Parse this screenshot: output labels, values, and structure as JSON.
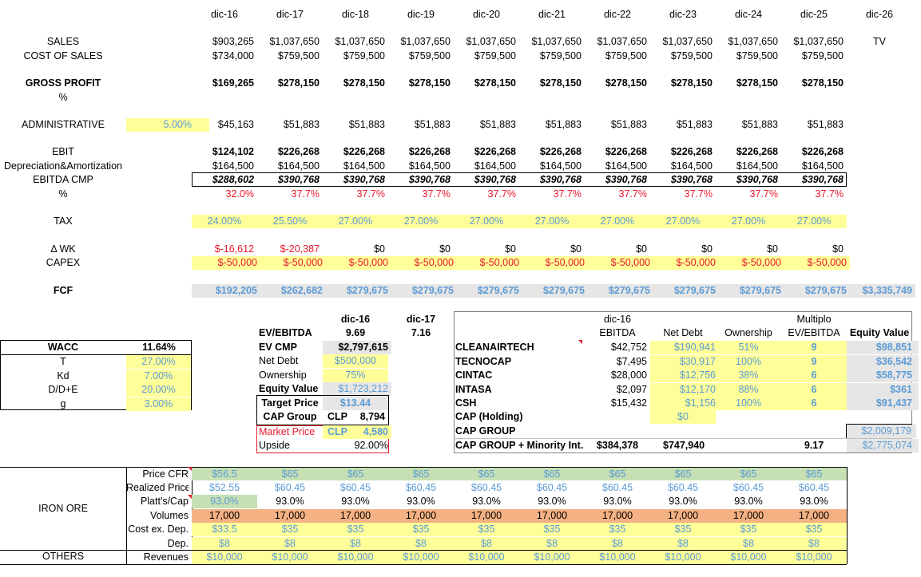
{
  "years": [
    "dic-16",
    "dic-17",
    "dic-18",
    "dic-19",
    "dic-20",
    "dic-21",
    "dic-22",
    "dic-23",
    "dic-24",
    "dic-25",
    "dic-26"
  ],
  "pnl": {
    "sales": {
      "label": "SALES",
      "values": [
        "$903,265",
        "$1,037,650",
        "$1,037,650",
        "$1,037,650",
        "$1,037,650",
        "$1,037,650",
        "$1,037,650",
        "$1,037,650",
        "$1,037,650",
        "$1,037,650"
      ],
      "tv": "TV"
    },
    "cost_of_sales": {
      "label": "COST OF SALES",
      "values": [
        "$734,000",
        "$759,500",
        "$759,500",
        "$759,500",
        "$759,500",
        "$759,500",
        "$759,500",
        "$759,500",
        "$759,500",
        "$759,500"
      ]
    },
    "gross_profit": {
      "label": "GROSS PROFIT",
      "values": [
        "$169,265",
        "$278,150",
        "$278,150",
        "$278,150",
        "$278,150",
        "$278,150",
        "$278,150",
        "$278,150",
        "$278,150",
        "$278,150"
      ]
    },
    "gross_pct": {
      "label": "%"
    },
    "administrative": {
      "label": "ADMINISTRATIVE",
      "rate": "5.00%",
      "values": [
        "$45,163",
        "$51,883",
        "$51,883",
        "$51,883",
        "$51,883",
        "$51,883",
        "$51,883",
        "$51,883",
        "$51,883",
        "$51,883"
      ]
    },
    "ebit": {
      "label": "EBIT",
      "values": [
        "$124,102",
        "$226,268",
        "$226,268",
        "$226,268",
        "$226,268",
        "$226,268",
        "$226,268",
        "$226,268",
        "$226,268",
        "$226,268"
      ]
    },
    "da": {
      "label": "Depreciation&Amortization",
      "values": [
        "$164,500",
        "$164,500",
        "$164,500",
        "$164,500",
        "$164,500",
        "$164,500",
        "$164,500",
        "$164,500",
        "$164,500",
        "$164,500"
      ]
    },
    "ebitda": {
      "label": "EBITDA CMP",
      "values": [
        "$288,602",
        "$390,768",
        "$390,768",
        "$390,768",
        "$390,768",
        "$390,768",
        "$390,768",
        "$390,768",
        "$390,768",
        "$390,768"
      ]
    },
    "ebitda_pct": {
      "label": "%",
      "values": [
        "32.0%",
        "37.7%",
        "37.7%",
        "37.7%",
        "37.7%",
        "37.7%",
        "37.7%",
        "37.7%",
        "37.7%",
        "37.7%"
      ]
    },
    "tax": {
      "label": "TAX",
      "values": [
        "24.00%",
        "25.50%",
        "27.00%",
        "27.00%",
        "27.00%",
        "27.00%",
        "27.00%",
        "27.00%",
        "27.00%",
        "27.00%"
      ]
    },
    "dwk": {
      "label": "Δ WK",
      "values": [
        "$-16,612",
        "$-20,387",
        "$0",
        "$0",
        "$0",
        "$0",
        "$0",
        "$0",
        "$0",
        "$0"
      ]
    },
    "capex": {
      "label": "CAPEX",
      "values": [
        "$-50,000",
        "$-50,000",
        "$-50,000",
        "$-50,000",
        "$-50,000",
        "$-50,000",
        "$-50,000",
        "$-50,000",
        "$-50,000",
        "$-50,000"
      ]
    },
    "fcf": {
      "label": "FCF",
      "values": [
        "$192,205",
        "$262,682",
        "$279,675",
        "$279,675",
        "$279,675",
        "$279,675",
        "$279,675",
        "$279,675",
        "$279,675",
        "$279,675"
      ],
      "tv": "$3,335,749"
    }
  },
  "wacc": {
    "title": "WACC",
    "title_value": "11.64%",
    "rows": [
      {
        "label": "T",
        "value": "27.00%"
      },
      {
        "label": "Kd",
        "value": "7.00%"
      },
      {
        "label": "D/D+E",
        "value": "20.00%"
      },
      {
        "label": "g",
        "value": "3.00%"
      }
    ]
  },
  "valuation": {
    "h1": "dic-16",
    "h2": "dic-17",
    "ev_ebitda_label": "EV/EBITDA",
    "ev_ebitda_1": "9.69",
    "ev_ebitda_2": "7.16",
    "ev_cmp_label": "EV CMP",
    "ev_cmp": "$2,797,615",
    "net_debt_label": "Net Debt",
    "net_debt": "$500,000",
    "ownership_label": "Ownership",
    "ownership": "75%",
    "equity_label": "Equity Value",
    "equity": "$1,723,212",
    "target_label": "Target Price",
    "target": "$13.44",
    "capgroup_label": "CAP Group",
    "capgroup_ccy": "CLP",
    "capgroup_value": "8,794",
    "market_label": "Market Price",
    "market_ccy": "CLP",
    "market_value": "4,580",
    "upside_label": "Upside",
    "upside": "92.00%"
  },
  "comps": {
    "h_year": "dic-16",
    "h_multiplo": "Multiplo",
    "headers": [
      "EBITDA",
      "Net Debt",
      "Ownership",
      "EV/EBITDA",
      "Equity Value"
    ],
    "rows": [
      {
        "name": "CLEANAIRTECH",
        "ebitda": "$42,752",
        "net_debt": "$190,941",
        "own": "51%",
        "mult": "9",
        "eq": "$98,851"
      },
      {
        "name": "TECNOCAP",
        "ebitda": "$7,495",
        "net_debt": "$30,917",
        "own": "100%",
        "mult": "9",
        "eq": "$36,542"
      },
      {
        "name": "CINTAC",
        "ebitda": "$28,000",
        "net_debt": "$12,756",
        "own": "38%",
        "mult": "6",
        "eq": "$58,775"
      },
      {
        "name": "INTASA",
        "ebitda": "$2,097",
        "net_debt": "$12,170",
        "own": "88%",
        "mult": "6",
        "eq": "$361"
      },
      {
        "name": "CSH",
        "ebitda": "$15,432",
        "net_debt": "$1,156",
        "own": "100%",
        "mult": "6",
        "eq": "$91,437"
      }
    ],
    "holding_label": "CAP (Holding)",
    "holding_value": "$0",
    "group_label": "CAP GROUP",
    "group_value": "$2,009,179",
    "total_label": "CAP GROUP + Minority Int.",
    "total_ebitda": "$384,378",
    "total_debt": "$747,940",
    "total_mult": "9.17",
    "total_eq": "$2,775,074"
  },
  "iron": {
    "section_label": "IRON ORE",
    "others_label": "OTHERS",
    "rows": [
      {
        "label": "Price CFR",
        "values": [
          "$56.5",
          "$65",
          "$65",
          "$65",
          "$65",
          "$65",
          "$65",
          "$65",
          "$65",
          "$65"
        ]
      },
      {
        "label": "Realized Price",
        "values": [
          "$52.55",
          "$60.45",
          "$60.45",
          "$60.45",
          "$60.45",
          "$60.45",
          "$60.45",
          "$60.45",
          "$60.45",
          "$60.45"
        ]
      },
      {
        "label": "Platt's/Cap",
        "values": [
          "93.0%",
          "93.0%",
          "93.0%",
          "93.0%",
          "93.0%",
          "93.0%",
          "93.0%",
          "93.0%",
          "93.0%",
          "93.0%"
        ]
      },
      {
        "label": "Volumes",
        "values": [
          "17,000",
          "17,000",
          "17,000",
          "17,000",
          "17,000",
          "17,000",
          "17,000",
          "17,000",
          "17,000",
          "17,000"
        ]
      },
      {
        "label": "Cost ex. Dep.",
        "values": [
          "$33.5",
          "$35",
          "$35",
          "$35",
          "$35",
          "$35",
          "$35",
          "$35",
          "$35",
          "$35"
        ]
      },
      {
        "label": "Dep.",
        "values": [
          "$8",
          "$8",
          "$8",
          "$8",
          "$8",
          "$8",
          "$8",
          "$8",
          "$8",
          "$8"
        ]
      },
      {
        "label": "Revenues",
        "values": [
          "$10,000",
          "$10,000",
          "$10,000",
          "$10,000",
          "$10,000",
          "$10,000",
          "$10,000",
          "$10,000",
          "$10,000",
          "$10,000"
        ]
      }
    ]
  },
  "colors": {
    "input_yellow": "#ffff99",
    "calc_gray": "#e7e6e6",
    "price_green": "#c6e0b4",
    "volume_orange": "#f4b183",
    "negative_red": "#e8182c",
    "link_blue": "#5b9bd5"
  }
}
